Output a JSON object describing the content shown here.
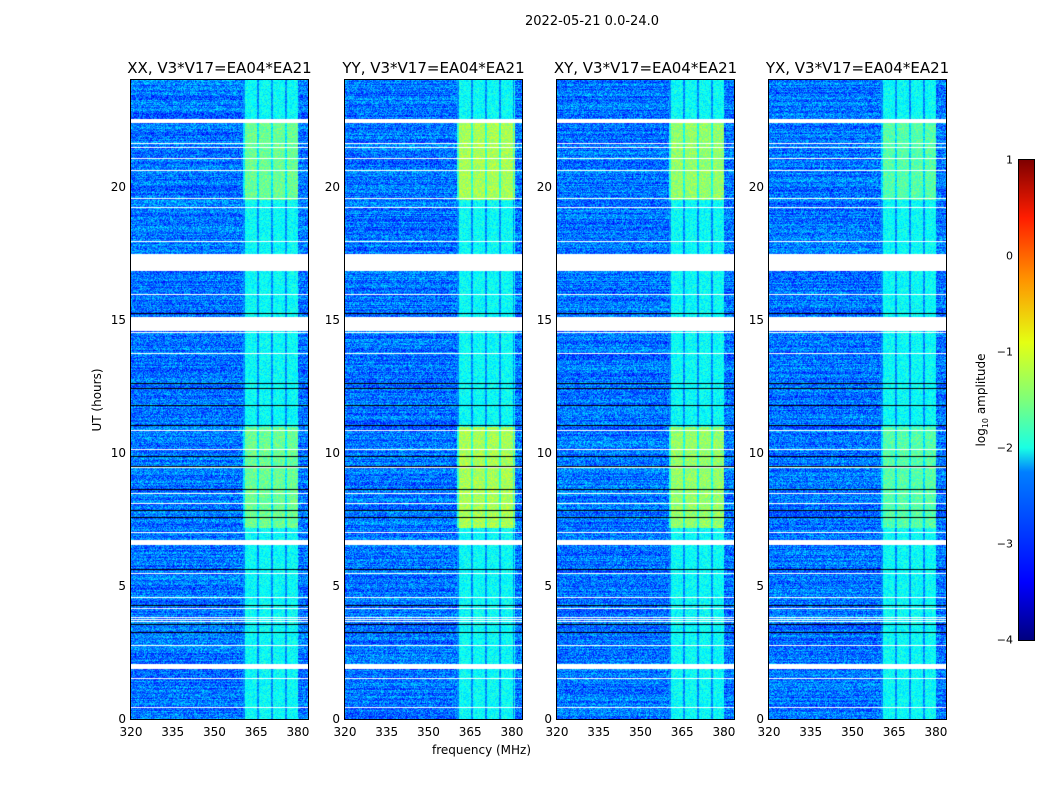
{
  "chart_data": {
    "type": "heatmap",
    "title": "2022-05-21 0.0-24.0",
    "xlabel": "frequency (MHz)",
    "ylabel": "UT (hours)",
    "xlim": [
      320,
      383.6
    ],
    "ylim": [
      0,
      24
    ],
    "xticks": [
      "320",
      "335",
      "350",
      "365",
      "380"
    ],
    "xtick_values": [
      320,
      335,
      350,
      365,
      380
    ],
    "yticks": [
      "0",
      "5",
      "10",
      "15",
      "20"
    ],
    "ytick_values": [
      0,
      5,
      10,
      15,
      20
    ],
    "panels": [
      {
        "title": "XX, V3*V17=EA04*EA21",
        "band_start": 360.2,
        "band_end": 380,
        "band_level": -1.6
      },
      {
        "title": "YY, V3*V17=EA04*EA21",
        "band_start": 360.2,
        "band_end": 381,
        "band_level": -1.3
      },
      {
        "title": "XY, V3*V17=EA04*EA21",
        "band_start": 360.2,
        "band_end": 380,
        "band_level": -1.4
      },
      {
        "title": "YX, V3*V17=EA04*EA21",
        "band_start": 360.2,
        "band_end": 380,
        "band_level": -1.7
      }
    ],
    "background_level": -2.8,
    "strong_periods_hours": [
      [
        19.5,
        22.5
      ],
      [
        7.2,
        11
      ]
    ],
    "flagged_gaps_hours": [
      [
        22.4,
        22.55
      ],
      [
        16.85,
        17.5
      ],
      [
        14.6,
        15.1
      ],
      [
        6.55,
        6.75
      ],
      [
        1.9,
        2.1
      ]
    ],
    "colorbar": {
      "label": "log10 amplitude",
      "range": [
        -4,
        1
      ],
      "ticks": [
        "1",
        "0",
        "−1",
        "−2",
        "−3",
        "−4"
      ],
      "tick_values": [
        1,
        0,
        -1,
        -2,
        -3,
        -4
      ]
    }
  }
}
